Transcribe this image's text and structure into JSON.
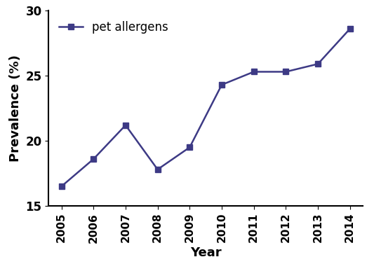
{
  "chart_data": {
    "type": "line",
    "x_label": "Year",
    "y_label": "Prevalence (%)",
    "categories": [
      "2005",
      "2006",
      "2007",
      "2008",
      "2009",
      "2010",
      "2011",
      "2012",
      "2013",
      "2014"
    ],
    "series": [
      {
        "name": "pet allergens",
        "color": "#3d3a85",
        "marker": "square",
        "line_style": "solid",
        "values": [
          16.5,
          18.6,
          21.2,
          17.8,
          19.5,
          24.3,
          25.3,
          25.3,
          25.9,
          28.6
        ]
      }
    ],
    "ylim": [
      15,
      30
    ],
    "yticks": [
      15,
      20,
      25,
      30
    ],
    "grid": false,
    "legend": "upper left"
  }
}
